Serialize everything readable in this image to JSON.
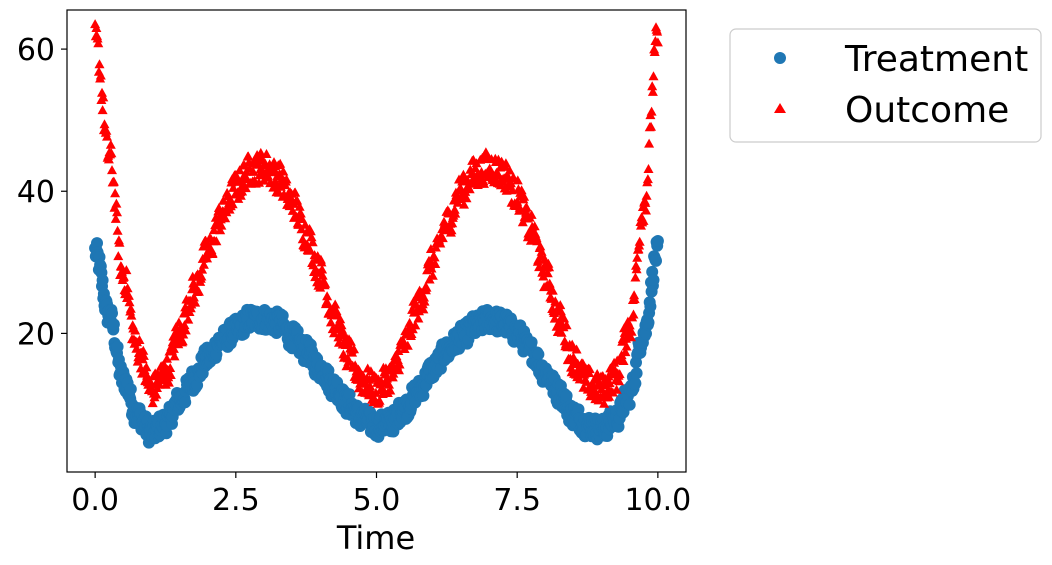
{
  "chart_data": {
    "type": "scatter",
    "title": "",
    "xlabel": "Time",
    "ylabel": "",
    "xlim": [
      -0.5,
      10.5
    ],
    "ylim": [
      0.5,
      65.5
    ],
    "xticks": [
      0.0,
      2.5,
      5.0,
      7.5,
      10.0
    ],
    "xtick_labels": [
      "0.0",
      "2.5",
      "5.0",
      "7.5",
      "10.0"
    ],
    "yticks": [
      20,
      40,
      60
    ],
    "ytick_labels": [
      "20",
      "40",
      "60"
    ],
    "grid": false,
    "legend_position": "outside-top-right",
    "series": [
      {
        "name": "Treatment",
        "marker": "circle",
        "color": "#1f77b4",
        "x": [
          0.0,
          0.25,
          0.5,
          0.75,
          1.0,
          1.25,
          1.5,
          1.75,
          2.0,
          2.25,
          2.5,
          2.75,
          3.0,
          3.25,
          3.5,
          3.75,
          4.0,
          4.25,
          4.5,
          4.75,
          5.0,
          5.25,
          5.5,
          5.75,
          6.0,
          6.25,
          6.5,
          6.75,
          7.0,
          7.25,
          7.5,
          7.75,
          8.0,
          8.25,
          8.5,
          8.75,
          9.0,
          9.25,
          9.5,
          9.75,
          10.0
        ],
        "y": [
          31.5,
          22.5,
          13.5,
          8.5,
          6.0,
          7.5,
          10.5,
          13.5,
          16.5,
          19.0,
          20.5,
          22.0,
          22.0,
          21.5,
          19.5,
          17.5,
          15.0,
          12.5,
          10.0,
          8.0,
          7.0,
          7.5,
          9.5,
          12.0,
          15.0,
          17.5,
          19.5,
          21.0,
          22.0,
          21.5,
          20.0,
          17.5,
          14.5,
          11.5,
          8.5,
          7.0,
          6.5,
          8.0,
          11.5,
          20.0,
          31.5
        ],
        "spread": 1.6
      },
      {
        "name": "Outcome",
        "marker": "triangle",
        "color": "#ff0000",
        "x": [
          0.0,
          0.25,
          0.5,
          0.75,
          1.0,
          1.25,
          1.5,
          1.75,
          2.0,
          2.25,
          2.5,
          2.75,
          3.0,
          3.25,
          3.5,
          3.75,
          4.0,
          4.25,
          4.5,
          4.75,
          5.0,
          5.25,
          5.5,
          5.75,
          6.0,
          6.25,
          6.5,
          6.75,
          7.0,
          7.25,
          7.5,
          7.75,
          8.0,
          8.25,
          8.5,
          8.75,
          9.0,
          9.25,
          9.5,
          9.75,
          10.0
        ],
        "y": [
          61.5,
          45.0,
          28.0,
          18.0,
          12.0,
          14.5,
          20.0,
          26.0,
          31.5,
          36.5,
          40.5,
          43.0,
          43.5,
          42.0,
          38.5,
          34.0,
          28.5,
          22.0,
          17.0,
          13.5,
          12.0,
          14.0,
          18.5,
          24.0,
          30.0,
          35.5,
          40.0,
          42.5,
          43.5,
          42.5,
          39.5,
          34.5,
          28.5,
          22.0,
          16.5,
          13.0,
          12.0,
          14.0,
          21.0,
          38.0,
          62.0
        ],
        "spread": 2.2
      }
    ]
  }
}
